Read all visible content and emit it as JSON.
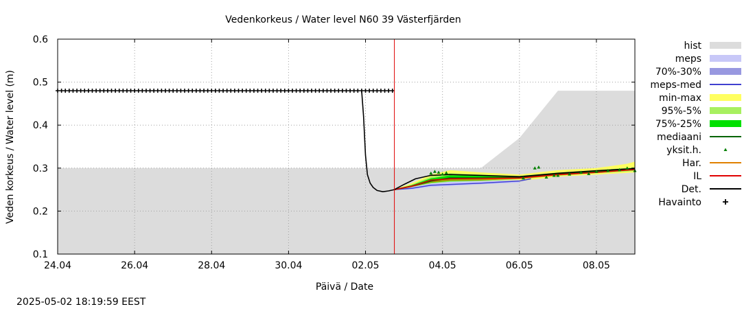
{
  "chart_data": {
    "type": "line",
    "title": "Vedenkorkeus / Water level   N60 39 Västerfjärden",
    "xlabel": "Päivä / Date",
    "ylabel": "Veden korkeus / Water level (m)",
    "footer": "2025-05-02 18:19:59 EEST",
    "x_unit": "days since 24.04 00:00",
    "xlim": [
      0,
      15
    ],
    "ylim": [
      0.1,
      0.6
    ],
    "grid": true,
    "now_x": 8.75,
    "x_ticks": [
      {
        "x": 0,
        "label": "24.04"
      },
      {
        "x": 2,
        "label": "26.04"
      },
      {
        "x": 4,
        "label": "28.04"
      },
      {
        "x": 6,
        "label": "30.04"
      },
      {
        "x": 8,
        "label": "02.05"
      },
      {
        "x": 10,
        "label": "04.05"
      },
      {
        "x": 12,
        "label": "06.05"
      },
      {
        "x": 14,
        "label": "08.05"
      }
    ],
    "y_ticks": [
      {
        "y": 0.1,
        "label": "0.1"
      },
      {
        "y": 0.2,
        "label": "0.2"
      },
      {
        "y": 0.3,
        "label": "0.3"
      },
      {
        "y": 0.4,
        "label": "0.4"
      },
      {
        "y": 0.5,
        "label": "0.5"
      },
      {
        "y": 0.6,
        "label": "0.6"
      }
    ],
    "legend": [
      {
        "key": "hist",
        "label": "hist",
        "kind": "box",
        "color": "#dcdcdc"
      },
      {
        "key": "meps",
        "label": "meps",
        "kind": "box",
        "color": "#c8c8f8"
      },
      {
        "key": "p70_30",
        "label": "70%-30%",
        "kind": "box",
        "color": "#9898e0"
      },
      {
        "key": "meps_med",
        "label": "meps-med",
        "kind": "line",
        "color": "#4040d0"
      },
      {
        "key": "minmax",
        "label": "min-max",
        "kind": "box",
        "color": "#ffff60"
      },
      {
        "key": "p95_5",
        "label": "95%-5%",
        "kind": "box",
        "color": "#a8f060"
      },
      {
        "key": "p75_25",
        "label": "75%-25%",
        "kind": "box",
        "color": "#00e000"
      },
      {
        "key": "mediaani",
        "label": "mediaani",
        "kind": "line",
        "color": "#006400"
      },
      {
        "key": "yksit",
        "label": "yksit.h.",
        "kind": "dot",
        "color": "#008000"
      },
      {
        "key": "har",
        "label": "Har.",
        "kind": "line",
        "color": "#e08000"
      },
      {
        "key": "il",
        "label": "IL",
        "kind": "line",
        "color": "#e00000"
      },
      {
        "key": "det",
        "label": "Det.",
        "kind": "line",
        "color": "#000000"
      },
      {
        "key": "havainto",
        "label": "Havainto",
        "kind": "plus",
        "color": "#000000"
      }
    ],
    "series": {
      "hist_upper": {
        "x": [
          0,
          8.75,
          11,
          12,
          13,
          15
        ],
        "y": [
          0.3,
          0.3,
          0.3,
          0.37,
          0.48,
          0.48
        ]
      },
      "minmax_upper": {
        "x": [
          8.75,
          9.2,
          9.7,
          10.2,
          11,
          12,
          13,
          14,
          14.8,
          15
        ],
        "y": [
          0.25,
          0.265,
          0.285,
          0.295,
          0.29,
          0.285,
          0.295,
          0.3,
          0.31,
          0.315
        ]
      },
      "minmax_lower": {
        "x": [
          8.75,
          9.2,
          9.7,
          10.2,
          11,
          12,
          13,
          14,
          15
        ],
        "y": [
          0.25,
          0.252,
          0.258,
          0.26,
          0.262,
          0.27,
          0.28,
          0.285,
          0.29
        ]
      },
      "p95_5_upper": {
        "x": [
          8.75,
          9.2,
          9.7,
          10.2,
          11,
          12,
          13,
          14,
          15
        ],
        "y": [
          0.25,
          0.262,
          0.28,
          0.288,
          0.285,
          0.282,
          0.29,
          0.295,
          0.302
        ]
      },
      "p95_5_lower": {
        "x": [
          8.75,
          9.2,
          9.7,
          10.2,
          11,
          12,
          13,
          14,
          15
        ],
        "y": [
          0.25,
          0.254,
          0.262,
          0.266,
          0.268,
          0.274,
          0.282,
          0.288,
          0.293
        ]
      },
      "p75_25_upper": {
        "x": [
          8.75,
          9.2,
          9.7,
          10.2,
          11,
          12,
          13,
          14,
          15
        ],
        "y": [
          0.25,
          0.26,
          0.276,
          0.283,
          0.282,
          0.28,
          0.288,
          0.293,
          0.299
        ]
      },
      "p75_25_lower": {
        "x": [
          8.75,
          9.2,
          9.7,
          10.2,
          11,
          12,
          13,
          14,
          15
        ],
        "y": [
          0.25,
          0.256,
          0.266,
          0.27,
          0.271,
          0.276,
          0.284,
          0.29,
          0.295
        ]
      },
      "meps_upper": {
        "x": [
          8.75,
          9.2,
          9.7,
          10.2,
          11,
          12
        ],
        "y": [
          0.25,
          0.256,
          0.264,
          0.268,
          0.27,
          0.272
        ]
      },
      "meps_lower": {
        "x": [
          8.75,
          9.2,
          9.7,
          10.2,
          11,
          12
        ],
        "y": [
          0.25,
          0.25,
          0.256,
          0.258,
          0.262,
          0.266
        ]
      },
      "meps_med": {
        "x": [
          8.75,
          9.2,
          9.7,
          10.2,
          11,
          12,
          12.3
        ],
        "y": [
          0.25,
          0.253,
          0.26,
          0.262,
          0.265,
          0.27,
          0.275
        ]
      },
      "mediaani": {
        "x": [
          8.75,
          9.2,
          9.7,
          10.2,
          11,
          12,
          13,
          14,
          15
        ],
        "y": [
          0.25,
          0.258,
          0.27,
          0.277,
          0.277,
          0.278,
          0.286,
          0.291,
          0.297
        ]
      },
      "har": {
        "x": [
          8.75,
          9.2,
          9.7,
          10.2,
          11,
          12,
          13,
          14,
          15
        ],
        "y": [
          0.25,
          0.257,
          0.268,
          0.272,
          0.273,
          0.276,
          0.284,
          0.29,
          0.296
        ]
      },
      "il": {
        "x": [
          8.75,
          9.2,
          9.7,
          10.2,
          11,
          12,
          13,
          14,
          15
        ],
        "y": [
          0.25,
          0.258,
          0.272,
          0.275,
          0.276,
          0.277,
          0.285,
          0.29,
          0.297
        ]
      },
      "det": {
        "x": [
          7.9,
          7.95,
          8.0,
          8.05,
          8.12,
          8.2,
          8.3,
          8.45,
          8.6,
          8.75,
          9.0,
          9.3,
          9.7,
          10.2,
          11,
          12,
          13,
          14,
          15
        ],
        "y": [
          0.48,
          0.42,
          0.33,
          0.285,
          0.265,
          0.255,
          0.248,
          0.245,
          0.247,
          0.25,
          0.262,
          0.275,
          0.283,
          0.285,
          0.283,
          0.28,
          0.288,
          0.294,
          0.299
        ]
      },
      "havainto": {
        "x_start": 0,
        "x_end": 8.75,
        "step": 0.1,
        "y": 0.48
      },
      "yksit": {
        "x": [
          9.7,
          9.8,
          9.9,
          10.0,
          10.1,
          12.4,
          12.5,
          12.7,
          13.0,
          13.3,
          13.6,
          14.0,
          14.3,
          14.6,
          14.8,
          15.0,
          12.1,
          12.9,
          13.8
        ],
        "y": [
          0.288,
          0.292,
          0.29,
          0.286,
          0.289,
          0.3,
          0.302,
          0.279,
          0.283,
          0.286,
          0.29,
          0.292,
          0.294,
          0.296,
          0.3,
          0.294,
          0.277,
          0.283,
          0.287
        ]
      }
    }
  }
}
